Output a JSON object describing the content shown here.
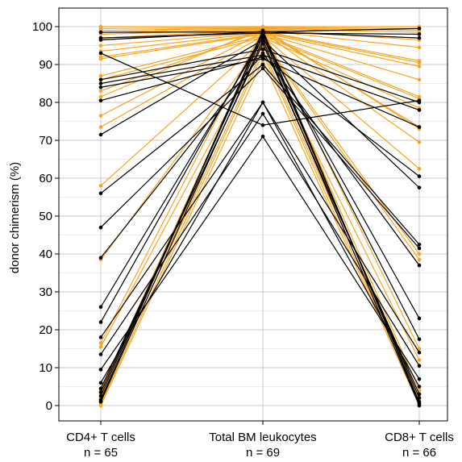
{
  "chart_data": {
    "type": "line",
    "title": "",
    "ylabel": "donor chimerism (%)",
    "ylim": [
      0,
      100
    ],
    "yticks": [
      0,
      10,
      20,
      30,
      40,
      50,
      60,
      70,
      80,
      90,
      100
    ],
    "grid": true,
    "categories": [
      {
        "name": "CD4+ T cells",
        "n": "n = 65"
      },
      {
        "name": "Total BM leukocytes",
        "n": "n = 69"
      },
      {
        "name": "CD8+ T cells",
        "n": "n = 66"
      }
    ],
    "series_colors": {
      "orange": "#f5a623",
      "black": "#000000"
    },
    "series": [
      {
        "color": "orange",
        "values": [
          100,
          100,
          100
        ]
      },
      {
        "color": "orange",
        "values": [
          99.5,
          99.8,
          99.5
        ]
      },
      {
        "color": "orange",
        "values": [
          99,
          99.6,
          99
        ]
      },
      {
        "color": "orange",
        "values": [
          98.5,
          99.4,
          98.5
        ]
      },
      {
        "color": "orange",
        "values": [
          98,
          99.2,
          96.5
        ]
      },
      {
        "color": "orange",
        "values": [
          97,
          99,
          94.5
        ]
      },
      {
        "color": "orange",
        "values": [
          96.5,
          98.8,
          91
        ]
      },
      {
        "color": "orange",
        "values": [
          95,
          98.6,
          90.5
        ]
      },
      {
        "color": "orange",
        "values": [
          93.5,
          98.4,
          89.5
        ]
      },
      {
        "color": "orange",
        "values": [
          92,
          98.2,
          86
        ]
      },
      {
        "color": "orange",
        "values": [
          91.5,
          98,
          81.5
        ]
      },
      {
        "color": "orange",
        "values": [
          87,
          97.6,
          81
        ]
      },
      {
        "color": "orange",
        "values": [
          86,
          97.2,
          78.5
        ]
      },
      {
        "color": "orange",
        "values": [
          83,
          99,
          73.5
        ]
      },
      {
        "color": "orange",
        "values": [
          81.5,
          99.5,
          73
        ]
      },
      {
        "color": "orange",
        "values": [
          76.5,
          98.5,
          69.5
        ]
      },
      {
        "color": "orange",
        "values": [
          73.5,
          97.5,
          62.5
        ]
      },
      {
        "color": "orange",
        "values": [
          58,
          96.5,
          40
        ]
      },
      {
        "color": "orange",
        "values": [
          38.5,
          96,
          38.5
        ]
      },
      {
        "color": "orange",
        "values": [
          16.5,
          99.2,
          15
        ]
      },
      {
        "color": "orange",
        "values": [
          15.5,
          95,
          12
        ]
      },
      {
        "color": "orange",
        "values": [
          4,
          98,
          4
        ]
      },
      {
        "color": "orange",
        "values": [
          3,
          96,
          3
        ]
      },
      {
        "color": "orange",
        "values": [
          2,
          94,
          2
        ]
      },
      {
        "color": "orange",
        "values": [
          0.5,
          93,
          0.5
        ]
      },
      {
        "color": "orange",
        "values": [
          0,
          91,
          0
        ]
      },
      {
        "color": "black",
        "values": [
          98.5,
          98.6,
          99.5
        ]
      },
      {
        "color": "black",
        "values": [
          97,
          98.3,
          98
        ]
      },
      {
        "color": "black",
        "values": [
          96.5,
          98.7,
          97
        ]
      },
      {
        "color": "black",
        "values": [
          93,
          74,
          80.5
        ]
      },
      {
        "color": "black",
        "values": [
          86,
          94,
          80
        ]
      },
      {
        "color": "black",
        "values": [
          85,
          92.5,
          78
        ]
      },
      {
        "color": "black",
        "values": [
          84,
          91.5,
          73.5
        ]
      },
      {
        "color": "black",
        "values": [
          80.5,
          92,
          60.5
        ]
      },
      {
        "color": "black",
        "values": [
          71.5,
          96.5,
          57.5
        ]
      },
      {
        "color": "black",
        "values": [
          56,
          90,
          42.5
        ]
      },
      {
        "color": "black",
        "values": [
          47,
          89,
          41.5
        ]
      },
      {
        "color": "black",
        "values": [
          39,
          93,
          37
        ]
      },
      {
        "color": "black",
        "values": [
          26,
          97,
          23
        ]
      },
      {
        "color": "black",
        "values": [
          22,
          98,
          17.5
        ]
      },
      {
        "color": "black",
        "values": [
          18,
          80,
          14
        ]
      },
      {
        "color": "black",
        "values": [
          13.5,
          77,
          10.5
        ]
      },
      {
        "color": "black",
        "values": [
          9.5,
          71,
          7
        ]
      },
      {
        "color": "black",
        "values": [
          6,
          80,
          5
        ]
      },
      {
        "color": "black",
        "values": [
          4.5,
          95.5,
          3
        ]
      },
      {
        "color": "black",
        "values": [
          3.5,
          97.5,
          2
        ]
      },
      {
        "color": "black",
        "values": [
          2.5,
          98.5,
          1
        ]
      },
      {
        "color": "black",
        "values": [
          1.5,
          99,
          0.5
        ]
      },
      {
        "color": "black",
        "values": [
          1,
          96.5,
          0
        ]
      }
    ]
  }
}
